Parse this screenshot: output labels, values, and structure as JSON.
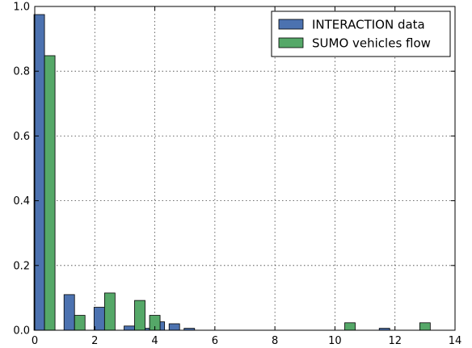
{
  "chart_data": {
    "type": "bar",
    "title": "",
    "xlabel": "",
    "ylabel": "",
    "xlim": [
      0,
      14
    ],
    "ylim": [
      0,
      1.0
    ],
    "xticks": [
      0,
      2,
      4,
      6,
      8,
      10,
      12,
      14
    ],
    "yticks": [
      0.0,
      0.2,
      0.4,
      0.6,
      0.8,
      1.0
    ],
    "xtick_labels": [
      "0",
      "2",
      "4",
      "6",
      "8",
      "10",
      "12",
      "14"
    ],
    "ytick_labels": [
      "0.0",
      "0.2",
      "0.4",
      "0.6",
      "0.8",
      "1.0"
    ],
    "grid": true,
    "legend_position": "top-right",
    "bar_width": 0.35,
    "series": [
      {
        "name": "INTERACTION data",
        "color": "#4c72b0",
        "x": [
          0.15,
          1.15,
          2.15,
          3.15,
          3.65,
          4.15,
          4.65,
          5.15,
          11.65
        ],
        "values": [
          0.975,
          0.11,
          0.071,
          0.013,
          0.006,
          0.026,
          0.02,
          0.006,
          0.006
        ]
      },
      {
        "name": "SUMO vehicles flow",
        "color": "#55a868",
        "x": [
          0.5,
          1.5,
          2.5,
          3.5,
          4.0,
          10.5,
          13.0
        ],
        "values": [
          0.848,
          0.046,
          0.115,
          0.092,
          0.046,
          0.023,
          0.023
        ]
      }
    ]
  }
}
